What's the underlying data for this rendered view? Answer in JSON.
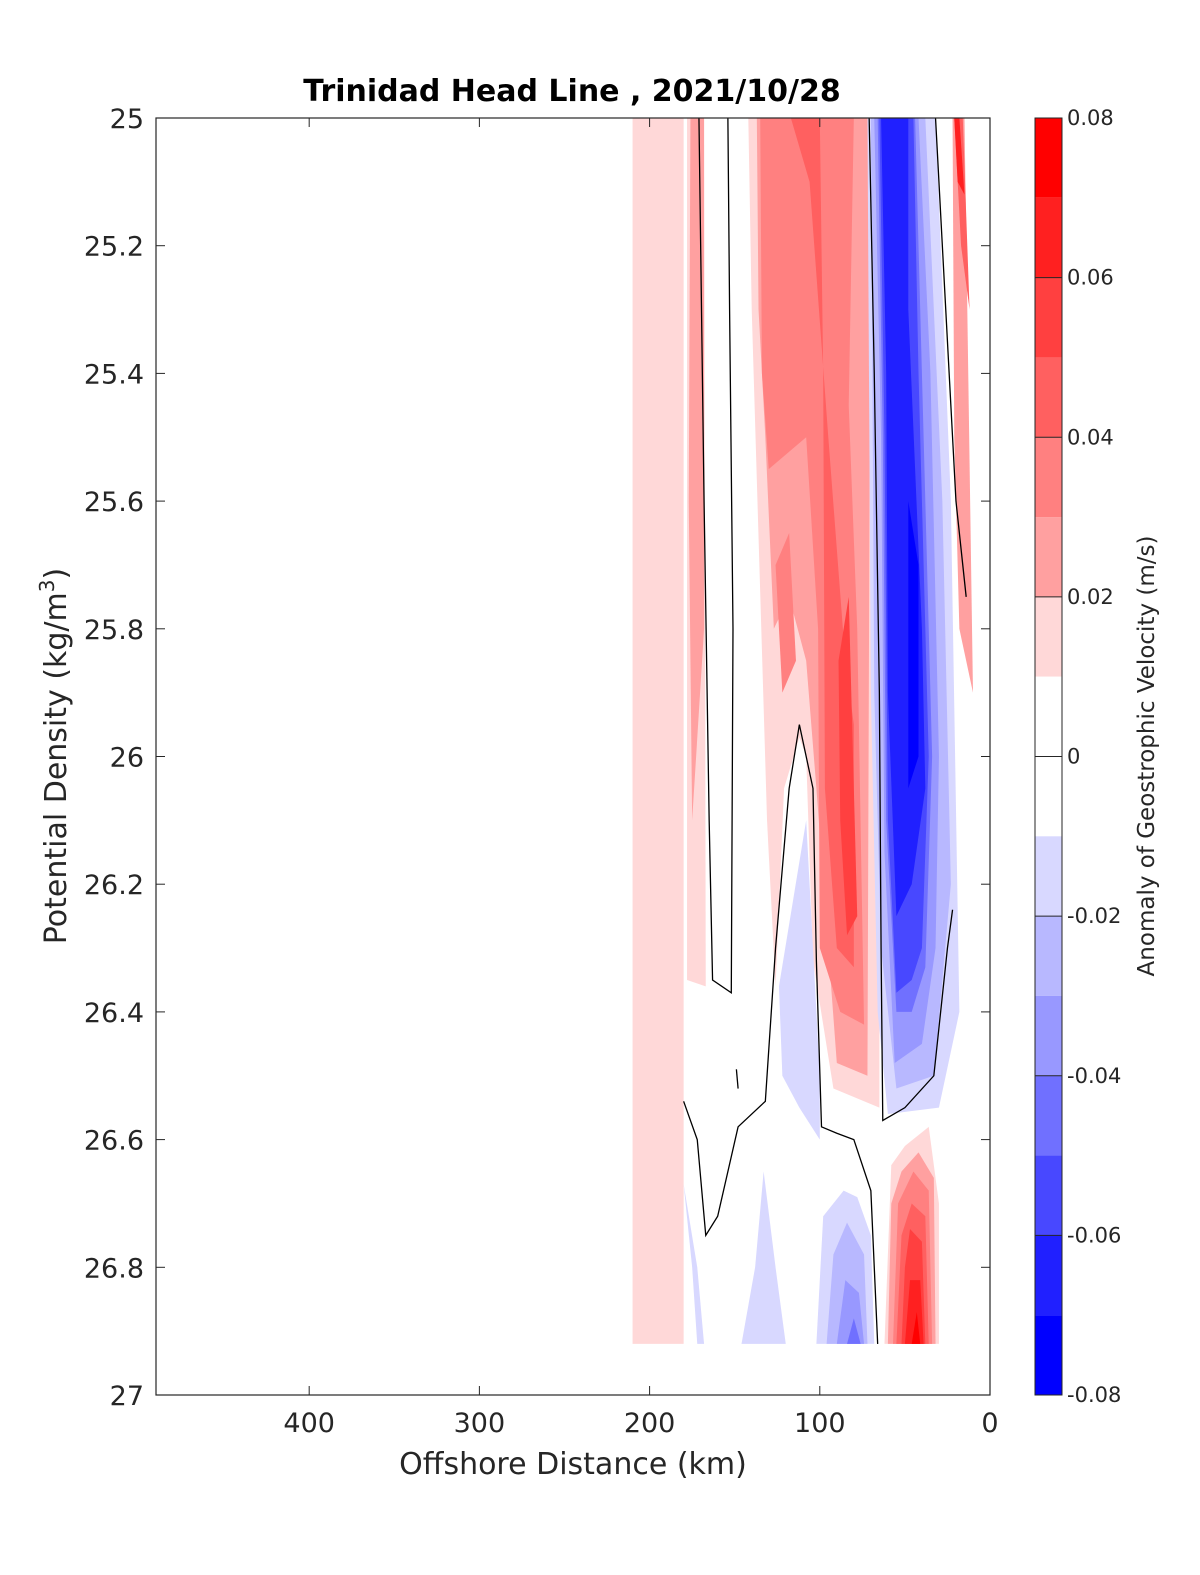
{
  "chart_data": {
    "type": "heatmap",
    "title": "Trinidad Head Line , 2021/10/28",
    "xlabel": "Offshore Distance (km)",
    "ylabel_main": "Potential Density (kg/m",
    "ylabel_sup": "3",
    "ylabel_close": ")",
    "xlim": [
      490,
      0
    ],
    "x_reversed": true,
    "ylim": [
      25,
      27
    ],
    "y_reversed": true,
    "x_ticks": [
      400,
      300,
      200,
      100,
      0
    ],
    "y_ticks": [
      25,
      25.2,
      25.4,
      25.6,
      25.8,
      26,
      26.2,
      26.4,
      26.6,
      26.8,
      27
    ],
    "grid": false,
    "colorbar": {
      "label": "Anomaly of Geostrophic Velocity (m/s)",
      "limits": [
        -0.08,
        0.08
      ],
      "ticks": [
        0.08,
        0.06,
        0.04,
        0.02,
        0,
        -0.02,
        -0.04,
        -0.06,
        -0.08
      ],
      "tick_labels": [
        "0.08",
        "0.06",
        "0.04",
        "0.02",
        "0",
        "-0.02",
        "-0.04",
        "-0.06",
        "-0.08"
      ],
      "levels": [
        {
          "min": 0.07,
          "max": 0.08,
          "color": "#ff0000"
        },
        {
          "min": 0.06,
          "max": 0.07,
          "color": "#ff2020"
        },
        {
          "min": 0.05,
          "max": 0.06,
          "color": "#ff4040"
        },
        {
          "min": 0.04,
          "max": 0.05,
          "color": "#ff6060"
        },
        {
          "min": 0.03,
          "max": 0.04,
          "color": "#ff8080"
        },
        {
          "min": 0.02,
          "max": 0.03,
          "color": "#ffa0a0"
        },
        {
          "min": 0.01,
          "max": 0.02,
          "color": "#ffd8d8"
        },
        {
          "min": -0.01,
          "max": 0.01,
          "color": "#ffffff"
        },
        {
          "min": -0.02,
          "max": -0.01,
          "color": "#d8d8ff"
        },
        {
          "min": -0.03,
          "max": -0.02,
          "color": "#b8b8ff"
        },
        {
          "min": -0.04,
          "max": -0.03,
          "color": "#9898ff"
        },
        {
          "min": -0.05,
          "max": -0.04,
          "color": "#7070ff"
        },
        {
          "min": -0.06,
          "max": -0.05,
          "color": "#4848ff"
        },
        {
          "min": -0.07,
          "max": -0.06,
          "color": "#2020ff"
        },
        {
          "min": -0.08,
          "max": -0.07,
          "color": "#0000ff"
        }
      ]
    },
    "regions": [
      {
        "v": 0.015,
        "pts": [
          [
            180,
            25
          ],
          [
            210,
            25
          ],
          [
            210,
            26.92
          ],
          [
            180,
            26.92
          ]
        ]
      },
      {
        "v": 0.015,
        "pts": [
          [
            178,
            25
          ],
          [
            168,
            25
          ],
          [
            167,
            26.36
          ],
          [
            178,
            26.35
          ]
        ]
      },
      {
        "v": 0.025,
        "pts": [
          [
            176,
            25
          ],
          [
            168,
            25
          ],
          [
            168,
            25.8
          ],
          [
            175,
            26.1
          ],
          [
            177,
            25.6
          ]
        ]
      },
      {
        "v": 0.015,
        "pts": [
          [
            142,
            25
          ],
          [
            65,
            25
          ],
          [
            65,
            26.55
          ],
          [
            92,
            26.52
          ],
          [
            104,
            26.32
          ],
          [
            108,
            26
          ],
          [
            112,
            25.97
          ],
          [
            121,
            26.05
          ],
          [
            126,
            26.36
          ],
          [
            131,
            26.1
          ],
          [
            140,
            25.3
          ]
        ]
      },
      {
        "v": 0.025,
        "pts": [
          [
            137,
            25
          ],
          [
            70,
            25
          ],
          [
            72,
            26.5
          ],
          [
            90,
            26.48
          ],
          [
            102,
            26.05
          ],
          [
            108,
            25.85
          ],
          [
            118,
            25.75
          ],
          [
            127,
            25.8
          ],
          [
            132,
            25.5
          ],
          [
            136,
            25.3
          ]
        ]
      },
      {
        "v": 0.035,
        "pts": [
          [
            135,
            25
          ],
          [
            80,
            25
          ],
          [
            83,
            25.45
          ],
          [
            78,
            25.8
          ],
          [
            74,
            26.42
          ],
          [
            88,
            26.4
          ],
          [
            100,
            26.3
          ],
          [
            101,
            25.8
          ],
          [
            108,
            25.5
          ],
          [
            130,
            25.55
          ],
          [
            134,
            25.4
          ]
        ]
      },
      {
        "v": 0.045,
        "pts": [
          [
            117,
            25
          ],
          [
            100,
            25
          ],
          [
            98,
            25.4
          ],
          [
            97,
            26.05
          ],
          [
            90,
            26.3
          ],
          [
            80,
            26.33
          ],
          [
            80,
            25.95
          ],
          [
            85,
            25.85
          ],
          [
            95,
            25.5
          ],
          [
            106,
            25.1
          ]
        ]
      },
      {
        "v": 0.055,
        "pts": [
          [
            89,
            25.85
          ],
          [
            83,
            25.75
          ],
          [
            78,
            26.25
          ],
          [
            84,
            26.28
          ],
          [
            88,
            26.1
          ]
        ]
      },
      {
        "v": 0.035,
        "pts": [
          [
            126,
            25.7
          ],
          [
            118,
            25.65
          ],
          [
            114,
            25.85
          ],
          [
            122,
            25.9
          ]
        ]
      },
      {
        "v": 0.025,
        "pts": [
          [
            22,
            25
          ],
          [
            15,
            25
          ],
          [
            10,
            25.9
          ],
          [
            18,
            25.8
          ],
          [
            21,
            25.5
          ]
        ]
      },
      {
        "v": 0.045,
        "pts": [
          [
            21,
            25
          ],
          [
            16,
            25
          ],
          [
            12,
            25.3
          ],
          [
            17,
            25.2
          ]
        ]
      },
      {
        "v": 0.065,
        "pts": [
          [
            21,
            25
          ],
          [
            18,
            25
          ],
          [
            15,
            25.12
          ],
          [
            19,
            25.1
          ]
        ]
      },
      {
        "v": -0.015,
        "pts": [
          [
            124,
            26.36
          ],
          [
            108,
            26.1
          ],
          [
            100,
            26.5
          ],
          [
            100,
            26.6
          ],
          [
            112,
            26.55
          ],
          [
            122,
            26.5
          ]
        ]
      },
      {
        "v": -0.015,
        "pts": [
          [
            72,
            25
          ],
          [
            32,
            25
          ],
          [
            23,
            25.6
          ],
          [
            18,
            26.4
          ],
          [
            30,
            26.55
          ],
          [
            60,
            26.56
          ],
          [
            66,
            26.4
          ],
          [
            70,
            25.9
          ]
        ]
      },
      {
        "v": -0.025,
        "pts": [
          [
            70,
            25
          ],
          [
            38,
            25
          ],
          [
            28,
            25.6
          ],
          [
            23,
            26.2
          ],
          [
            33,
            26.5
          ],
          [
            55,
            26.52
          ],
          [
            64,
            26.3
          ],
          [
            68,
            25.9
          ]
        ]
      },
      {
        "v": -0.035,
        "pts": [
          [
            68,
            25
          ],
          [
            42,
            25
          ],
          [
            35,
            25.4
          ],
          [
            30,
            26
          ],
          [
            32,
            26.3
          ],
          [
            40,
            26.45
          ],
          [
            56,
            26.48
          ],
          [
            62,
            26.15
          ],
          [
            64,
            25.5
          ]
        ]
      },
      {
        "v": -0.045,
        "pts": [
          [
            66,
            25
          ],
          [
            44,
            25
          ],
          [
            40,
            25.4
          ],
          [
            34,
            26
          ],
          [
            38,
            26.33
          ],
          [
            46,
            26.4
          ],
          [
            55,
            26.4
          ],
          [
            61,
            26.1
          ],
          [
            63,
            25.5
          ]
        ]
      },
      {
        "v": -0.055,
        "pts": [
          [
            65,
            25
          ],
          [
            45,
            25
          ],
          [
            42,
            25.4
          ],
          [
            36,
            26
          ],
          [
            40,
            26.3
          ],
          [
            46,
            26.35
          ],
          [
            55,
            26.37
          ],
          [
            60,
            26.1
          ],
          [
            62,
            25.5
          ]
        ]
      },
      {
        "v": -0.065,
        "pts": [
          [
            64,
            25
          ],
          [
            48,
            25
          ],
          [
            48,
            25.3
          ],
          [
            40,
            25.8
          ],
          [
            38,
            26.05
          ],
          [
            46,
            26.2
          ],
          [
            55,
            26.25
          ],
          [
            60,
            25.9
          ],
          [
            61,
            25.4
          ]
        ]
      },
      {
        "v": -0.075,
        "pts": [
          [
            48,
            25.6
          ],
          [
            42,
            25.7
          ],
          [
            42,
            26
          ],
          [
            48,
            26.05
          ]
        ]
      },
      {
        "v": 0.015,
        "pts": [
          [
            62,
            26.92
          ],
          [
            30,
            26.92
          ],
          [
            30,
            26.7
          ],
          [
            36,
            26.58
          ],
          [
            50,
            26.61
          ],
          [
            58,
            26.64
          ]
        ]
      },
      {
        "v": 0.025,
        "pts": [
          [
            60,
            26.92
          ],
          [
            32,
            26.92
          ],
          [
            33,
            26.66
          ],
          [
            42,
            26.62
          ],
          [
            52,
            26.65
          ],
          [
            58,
            26.7
          ]
        ]
      },
      {
        "v": 0.035,
        "pts": [
          [
            57,
            26.92
          ],
          [
            34,
            26.92
          ],
          [
            36,
            26.68
          ],
          [
            45,
            26.65
          ],
          [
            54,
            26.7
          ]
        ]
      },
      {
        "v": 0.045,
        "pts": [
          [
            55,
            26.92
          ],
          [
            36,
            26.92
          ],
          [
            38,
            26.72
          ],
          [
            46,
            26.7
          ],
          [
            52,
            26.75
          ]
        ]
      },
      {
        "v": 0.055,
        "pts": [
          [
            52,
            26.92
          ],
          [
            38,
            26.92
          ],
          [
            40,
            26.76
          ],
          [
            47,
            26.74
          ],
          [
            50,
            26.8
          ]
        ]
      },
      {
        "v": 0.065,
        "pts": [
          [
            50,
            26.92
          ],
          [
            39,
            26.92
          ],
          [
            41,
            26.82
          ],
          [
            47,
            26.82
          ]
        ]
      },
      {
        "v": 0.075,
        "pts": [
          [
            46,
            26.92
          ],
          [
            41,
            26.92
          ],
          [
            43,
            26.87
          ]
        ]
      },
      {
        "v": -0.015,
        "pts": [
          [
            180,
            26.67
          ],
          [
            175,
            26.8
          ],
          [
            172,
            26.92
          ],
          [
            168,
            26.92
          ],
          [
            172,
            26.8
          ]
        ]
      },
      {
        "v": -0.015,
        "pts": [
          [
            146,
            26.92
          ],
          [
            120,
            26.92
          ],
          [
            126,
            26.8
          ],
          [
            133,
            26.65
          ],
          [
            138,
            26.8
          ]
        ]
      },
      {
        "v": -0.015,
        "pts": [
          [
            102,
            26.92
          ],
          [
            68,
            26.92
          ],
          [
            70,
            26.75
          ],
          [
            78,
            26.69
          ],
          [
            86,
            26.68
          ],
          [
            98,
            26.72
          ]
        ]
      },
      {
        "v": -0.025,
        "pts": [
          [
            96,
            26.92
          ],
          [
            72,
            26.92
          ],
          [
            74,
            26.78
          ],
          [
            84,
            26.73
          ],
          [
            92,
            26.78
          ]
        ]
      },
      {
        "v": -0.035,
        "pts": [
          [
            90,
            26.92
          ],
          [
            74,
            26.92
          ],
          [
            77,
            26.84
          ],
          [
            85,
            26.82
          ]
        ]
      },
      {
        "v": -0.045,
        "pts": [
          [
            84,
            26.92
          ],
          [
            76,
            26.92
          ],
          [
            80,
            26.88
          ]
        ]
      }
    ],
    "zero_contours": [
      [
        [
          171,
          25
        ],
        [
          168,
          25.6
        ],
        [
          165,
          26.1
        ],
        [
          163,
          26.35
        ],
        [
          152,
          26.37
        ],
        [
          151,
          25.8
        ],
        [
          153,
          25.3
        ],
        [
          154,
          25
        ]
      ],
      [
        [
          71,
          25
        ],
        [
          68,
          25.4
        ],
        [
          65,
          25.9
        ],
        [
          64,
          26.3
        ],
        [
          63,
          26.57
        ],
        [
          50,
          26.55
        ],
        [
          33,
          26.5
        ],
        [
          25,
          26.3
        ],
        [
          22,
          26.24
        ]
      ],
      [
        [
          32,
          25
        ],
        [
          26,
          25.3
        ],
        [
          20,
          25.6
        ],
        [
          14,
          25.75
        ]
      ],
      [
        [
          180,
          26.54
        ],
        [
          172,
          26.6
        ],
        [
          167,
          26.75
        ],
        [
          160,
          26.72
        ],
        [
          148,
          26.58
        ],
        [
          132,
          26.54
        ],
        [
          126,
          26.3
        ],
        [
          118,
          26.05
        ],
        [
          112,
          25.95
        ],
        [
          104,
          26.05
        ],
        [
          102,
          26.32
        ],
        [
          99,
          26.58
        ],
        [
          90,
          26.59
        ],
        [
          80,
          26.6
        ],
        [
          70,
          26.68
        ],
        [
          66,
          26.92
        ]
      ],
      [
        [
          149,
          26.49
        ],
        [
          148,
          26.52
        ]
      ]
    ]
  }
}
